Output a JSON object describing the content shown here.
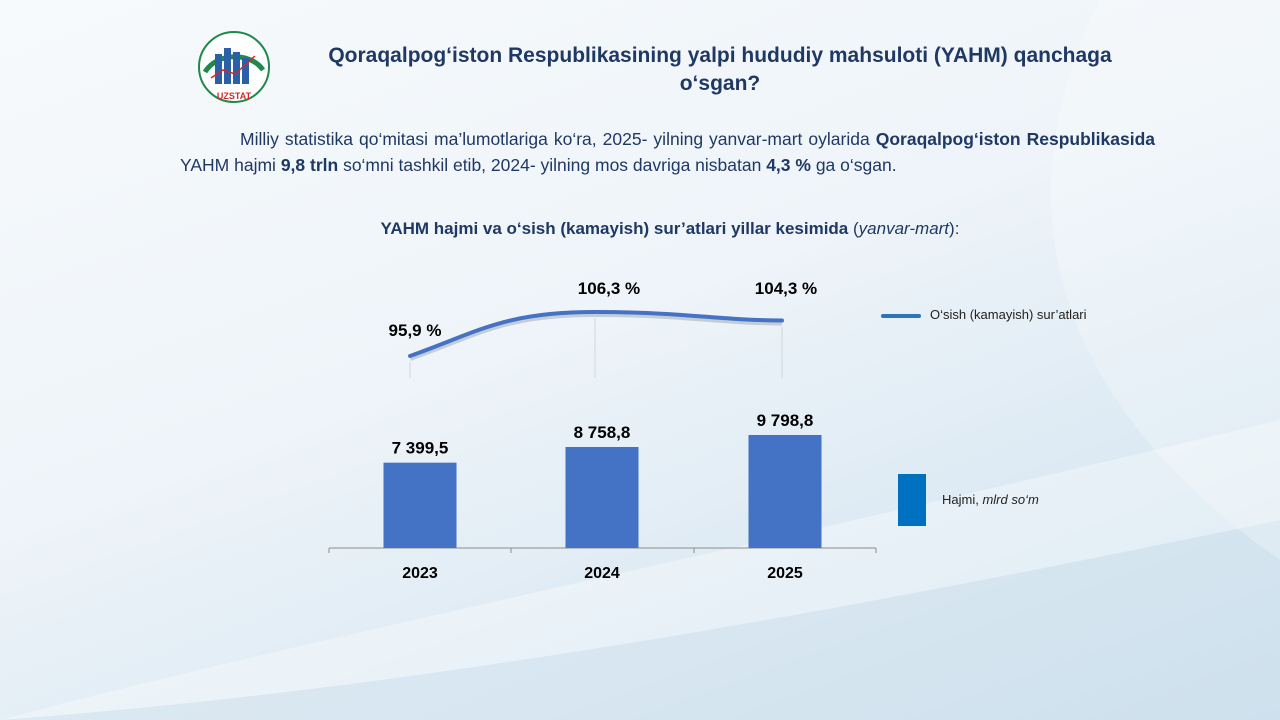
{
  "header": {
    "logo_text": "UZSTAT",
    "title": "Qoraqalpog‘iston Respublikasining yalpi hududiy mahsuloti (YAHM) qanchaga o‘sgan?"
  },
  "paragraph": {
    "p1": "Milliy statistika qo‘mitasi ma’lumotlariga ko‘ra, 2025- yilning yanvar-mart oylarida ",
    "p2_bold": "Qoraqalpog‘iston Respublikasida",
    "p3": " YAHM hajmi ",
    "p4_bold": "9,8 trln",
    "p5": " so‘mni tashkil etib, 2024- yilning mos davriga nisbatan ",
    "p6_bold": "4,3 %",
    "p7": " ga o‘sgan."
  },
  "chart_title": {
    "main": "YAHM hajmi va o‘sish (kamayish) sur’atlari yillar kesimida ",
    "paren_open": "(",
    "italic": "yanvar-mart",
    "paren_close": "):"
  },
  "chart_data": {
    "type": "bar",
    "categories": [
      "2023",
      "2024",
      "2025"
    ],
    "series": [
      {
        "name": "Hajmi, mlrd so‘m",
        "type": "bar",
        "values": [
          7399.5,
          8758.8,
          9798.8
        ],
        "labels": [
          "7 399,5",
          "8 758,8",
          "9 798,8"
        ],
        "color": "#4472c4"
      },
      {
        "name": "O‘sish (kamayish) sur’atlari",
        "type": "line",
        "values": [
          95.9,
          106.3,
          104.3
        ],
        "labels": [
          "95,9 %",
          "106,3 %",
          "104,3 %"
        ],
        "color": "#4472c4"
      }
    ],
    "legend": {
      "line_label": "O‘sish (kamayish) sur’atlari",
      "bar_label_main": "Hajmi, ",
      "bar_label_unit": "mlrd so‘m"
    },
    "legend_position": "right",
    "grid": false
  }
}
